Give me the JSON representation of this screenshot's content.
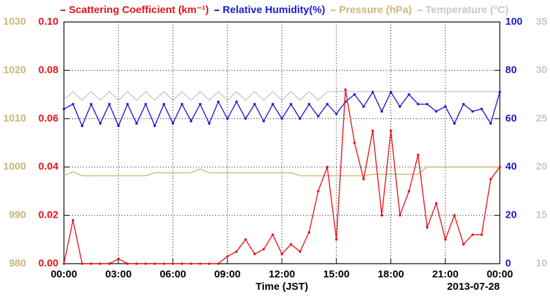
{
  "chart_data": {
    "type": "line",
    "xlabel": "Time (JST)",
    "annotation": "2013-07-28",
    "grid": true,
    "x": [
      0,
      0.5,
      1,
      1.5,
      2,
      2.5,
      3,
      3.5,
      4,
      4.5,
      5,
      5.5,
      6,
      6.5,
      7,
      7.5,
      8,
      8.5,
      9,
      9.5,
      10,
      10.5,
      11,
      11.5,
      12,
      12.5,
      13,
      13.5,
      14,
      14.5,
      15,
      15.5,
      16,
      16.5,
      17,
      17.5,
      18,
      18.5,
      19,
      19.5,
      20,
      20.5,
      21,
      21.5,
      22,
      22.5,
      23,
      23.5,
      24
    ],
    "xlim": [
      0,
      24
    ],
    "xticks": [
      {
        "value": 0,
        "label": "00:00"
      },
      {
        "value": 3,
        "label": "03:00"
      },
      {
        "value": 6,
        "label": "06:00"
      },
      {
        "value": 9,
        "label": "09:00"
      },
      {
        "value": 12,
        "label": "12:00"
      },
      {
        "value": 15,
        "label": "15:00"
      },
      {
        "value": 18,
        "label": "18:00"
      },
      {
        "value": 21,
        "label": "21:00"
      },
      {
        "value": 24,
        "label": "00:00"
      }
    ],
    "ylim": [
      0,
      0.1
    ],
    "yticks": [
      {
        "value": 0,
        "label": "0.00"
      },
      {
        "value": 0.02,
        "label": "0.02"
      },
      {
        "value": 0.04,
        "label": "0.04"
      },
      {
        "value": 0.06,
        "label": "0.06"
      },
      {
        "value": 0.08,
        "label": "0.08"
      },
      {
        "value": 0.1,
        "label": "0.10"
      }
    ],
    "y2lim": [
      0,
      100
    ],
    "y2ticks": [
      0,
      20,
      40,
      60,
      80,
      100
    ],
    "y3lim": [
      980,
      1030
    ],
    "y3ticks": [
      980,
      990,
      1000,
      1010,
      1020,
      1030
    ],
    "y4lim": [
      10,
      35
    ],
    "y4ticks": [
      10,
      15,
      20,
      25,
      30,
      35
    ],
    "series": [
      {
        "name": "Scattering Coefficient (km⁻¹)",
        "color": "#e8141c",
        "axis": "y",
        "markers": true,
        "values": [
          0,
          0.018,
          0,
          0,
          0,
          0,
          0.002,
          0,
          0,
          0,
          0,
          0,
          0,
          0,
          0,
          0,
          0,
          0,
          0.003,
          0.005,
          0.01,
          0.004,
          0.006,
          0.012,
          0.004,
          0.008,
          0.005,
          0.013,
          0.03,
          0.04,
          0.01,
          0.072,
          0.05,
          0.035,
          0.055,
          0.02,
          0.055,
          0.02,
          0.03,
          0.045,
          0.015,
          0.025,
          0.01,
          0.02,
          0.008,
          0.012,
          0.012,
          0.035,
          0.04
        ]
      },
      {
        "name": "Relative Humidity(%)",
        "color": "#1a1ad6",
        "axis": "y2",
        "markers": true,
        "values": [
          64,
          66,
          57,
          66,
          58,
          66,
          57,
          66,
          58,
          66,
          57,
          66,
          58,
          66,
          59,
          66,
          58,
          67,
          60,
          67,
          60,
          66,
          59,
          66,
          60,
          66,
          60,
          66,
          61,
          66,
          62,
          67,
          70,
          65,
          71,
          63,
          71,
          65,
          70,
          66,
          66,
          63,
          65,
          58,
          66,
          63,
          64,
          58,
          71
        ]
      },
      {
        "name": "Pressure (hPa)",
        "color": "#c8b878",
        "axis": "y3",
        "markers": false,
        "values": [
          998.2,
          999,
          998.2,
          998.2,
          998.2,
          998.2,
          998.2,
          998.2,
          998.2,
          998.2,
          998.8,
          998.8,
          998.8,
          998.8,
          998.8,
          999.6,
          998.8,
          998.8,
          998.8,
          998.8,
          998.8,
          998.8,
          998.8,
          998.8,
          998.8,
          998.8,
          998.2,
          998.2,
          998.2,
          998.2,
          998.2,
          998.2,
          998.2,
          998.2,
          998.5,
          998.5,
          998.5,
          998.5,
          998.5,
          998.5,
          1000,
          1000,
          1000,
          1000,
          1000,
          1000,
          1000,
          1000,
          1000
        ]
      },
      {
        "name": "Temperature (°C)",
        "color": "#c8c8c8",
        "axis": "y4",
        "markers": false,
        "values": [
          26.9,
          27.8,
          26.9,
          27.8,
          26.9,
          27.8,
          26.9,
          27.8,
          26.9,
          27.8,
          26.9,
          27.8,
          26.9,
          27.8,
          26.9,
          27.8,
          26.9,
          27.8,
          26.9,
          27.8,
          26.9,
          27.8,
          26.9,
          27.8,
          26.9,
          27.8,
          26.9,
          27.8,
          26.9,
          27.8,
          27.8,
          27.8,
          27.8,
          27.8,
          27.8,
          27.8,
          27.8,
          27.8,
          27.8,
          27.8,
          27.8,
          27.8,
          27.8,
          27.8,
          27.8,
          27.8,
          27.8,
          27.8,
          27.8
        ]
      }
    ]
  }
}
